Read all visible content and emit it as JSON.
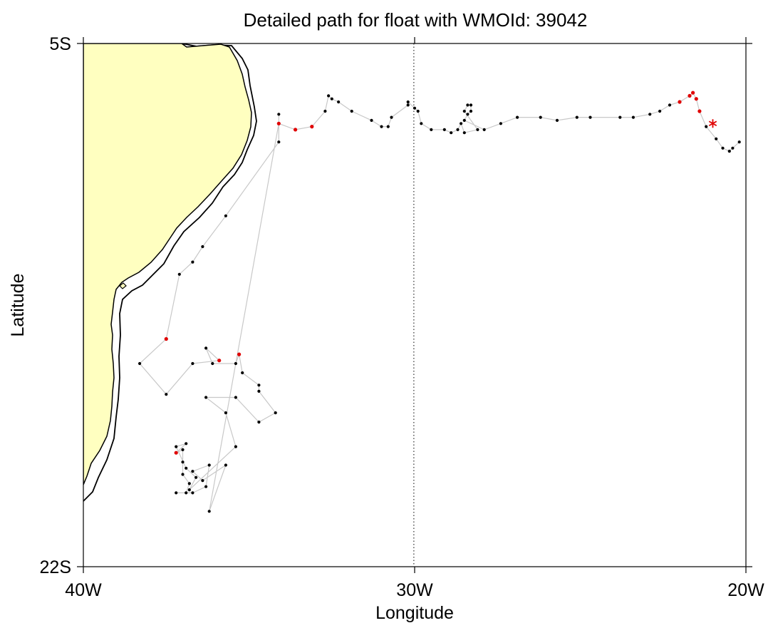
{
  "chart_data": {
    "type": "scatter",
    "title": "Detailed path for float with WMOId: 39042",
    "xlabel": "Longitude",
    "ylabel": "Latitude",
    "xlim": [
      -40,
      -20
    ],
    "ylim": [
      -22,
      -5
    ],
    "x_ticks": [
      {
        "value": -40,
        "label": "40W"
      },
      {
        "value": -30,
        "label": "30W"
      },
      {
        "value": -20,
        "label": "20W"
      }
    ],
    "y_ticks": [
      {
        "value": -5,
        "label": "5S"
      },
      {
        "value": -22,
        "label": "22S"
      }
    ],
    "reference_line": {
      "x": -30,
      "style": "dotted"
    },
    "grid": false,
    "colors": {
      "land": "#ffffc0",
      "coast": "#000000",
      "track": "#c8c8c8",
      "point": "#000000",
      "highlight": "#e00000",
      "last_position": "#e00000"
    },
    "track": [
      {
        "lon": -34.1,
        "lat": -7.3
      },
      {
        "lon": -34.1,
        "lat": -8.2
      },
      {
        "lon": -35.7,
        "lat": -10.6
      },
      {
        "lon": -36.4,
        "lat": -11.6
      },
      {
        "lon": -36.7,
        "lat": -12.1
      },
      {
        "lon": -37.1,
        "lat": -12.5
      },
      {
        "lon": -37.5,
        "lat": -14.6,
        "flag": true
      },
      {
        "lon": -38.3,
        "lat": -15.4
      },
      {
        "lon": -37.5,
        "lat": -16.4
      },
      {
        "lon": -36.7,
        "lat": -15.4
      },
      {
        "lon": -35.9,
        "lat": -15.3,
        "flag": true
      },
      {
        "lon": -36.3,
        "lat": -14.9
      },
      {
        "lon": -36.1,
        "lat": -15.4
      },
      {
        "lon": -35.4,
        "lat": -15.4
      },
      {
        "lon": -35.3,
        "lat": -15.1,
        "flag": true
      },
      {
        "lon": -35.2,
        "lat": -15.7
      },
      {
        "lon": -34.7,
        "lat": -16.1
      },
      {
        "lon": -34.7,
        "lat": -16.3
      },
      {
        "lon": -34.2,
        "lat": -17.0
      },
      {
        "lon": -34.7,
        "lat": -17.3
      },
      {
        "lon": -35.4,
        "lat": -16.5
      },
      {
        "lon": -36.3,
        "lat": -16.5
      },
      {
        "lon": -35.7,
        "lat": -17.0
      },
      {
        "lon": -35.4,
        "lat": -18.1
      },
      {
        "lon": -36.8,
        "lat": -19.5
      },
      {
        "lon": -36.6,
        "lat": -19.1
      },
      {
        "lon": -36.9,
        "lat": -18.8
      },
      {
        "lon": -37.2,
        "lat": -18.1
      },
      {
        "lon": -36.9,
        "lat": -18.0
      },
      {
        "lon": -37.2,
        "lat": -18.3,
        "flag": true
      },
      {
        "lon": -37.0,
        "lat": -18.2
      },
      {
        "lon": -37.0,
        "lat": -18.6
      },
      {
        "lon": -37.0,
        "lat": -19.0
      },
      {
        "lon": -36.8,
        "lat": -19.3
      },
      {
        "lon": -36.9,
        "lat": -19.6
      },
      {
        "lon": -37.2,
        "lat": -19.6
      },
      {
        "lon": -36.7,
        "lat": -19.6
      },
      {
        "lon": -36.3,
        "lat": -19.4
      },
      {
        "lon": -36.2,
        "lat": -18.7
      },
      {
        "lon": -36.7,
        "lat": -18.9
      },
      {
        "lon": -36.4,
        "lat": -19.2
      },
      {
        "lon": -35.7,
        "lat": -18.7
      },
      {
        "lon": -36.2,
        "lat": -20.2
      },
      {
        "lon": -34.1,
        "lat": -7.6,
        "flag": true
      },
      {
        "lon": -33.6,
        "lat": -7.8,
        "flag": true
      },
      {
        "lon": -33.1,
        "lat": -7.7,
        "flag": true
      },
      {
        "lon": -32.7,
        "lat": -7.2
      },
      {
        "lon": -32.6,
        "lat": -6.7
      },
      {
        "lon": -32.5,
        "lat": -6.8
      },
      {
        "lon": -32.3,
        "lat": -6.9
      },
      {
        "lon": -31.9,
        "lat": -7.2
      },
      {
        "lon": -31.3,
        "lat": -7.5
      },
      {
        "lon": -31.0,
        "lat": -7.7
      },
      {
        "lon": -30.8,
        "lat": -7.7
      },
      {
        "lon": -30.7,
        "lat": -7.4
      },
      {
        "lon": -30.2,
        "lat": -7.0
      },
      {
        "lon": -30.2,
        "lat": -6.9
      },
      {
        "lon": -30.0,
        "lat": -7.1
      },
      {
        "lon": -29.9,
        "lat": -7.2
      },
      {
        "lon": -29.8,
        "lat": -7.6
      },
      {
        "lon": -29.5,
        "lat": -7.8
      },
      {
        "lon": -29.1,
        "lat": -7.8
      },
      {
        "lon": -28.9,
        "lat": -7.9
      },
      {
        "lon": -28.7,
        "lat": -7.8
      },
      {
        "lon": -28.6,
        "lat": -7.6
      },
      {
        "lon": -28.5,
        "lat": -7.9
      },
      {
        "lon": -28.1,
        "lat": -7.8
      },
      {
        "lon": -28.5,
        "lat": -7.2
      },
      {
        "lon": -28.4,
        "lat": -7.0
      },
      {
        "lon": -28.3,
        "lat": -7.0
      },
      {
        "lon": -28.3,
        "lat": -7.2
      },
      {
        "lon": -28.4,
        "lat": -7.3
      },
      {
        "lon": -28.5,
        "lat": -7.5
      },
      {
        "lon": -27.9,
        "lat": -7.8
      },
      {
        "lon": -27.4,
        "lat": -7.6
      },
      {
        "lon": -26.9,
        "lat": -7.4
      },
      {
        "lon": -26.2,
        "lat": -7.4
      },
      {
        "lon": -25.7,
        "lat": -7.5
      },
      {
        "lon": -25.1,
        "lat": -7.4
      },
      {
        "lon": -24.7,
        "lat": -7.4
      },
      {
        "lon": -23.8,
        "lat": -7.4
      },
      {
        "lon": -23.4,
        "lat": -7.4
      },
      {
        "lon": -22.9,
        "lat": -7.3
      },
      {
        "lon": -22.6,
        "lat": -7.2
      },
      {
        "lon": -22.3,
        "lat": -7.0
      },
      {
        "lon": -22.0,
        "lat": -6.9,
        "flag": true
      },
      {
        "lon": -21.7,
        "lat": -6.7,
        "flag": true
      },
      {
        "lon": -21.6,
        "lat": -6.6,
        "flag": true
      },
      {
        "lon": -21.5,
        "lat": -6.8,
        "flag": true
      },
      {
        "lon": -21.4,
        "lat": -7.2,
        "flag": true
      },
      {
        "lon": -21.2,
        "lat": -7.7
      },
      {
        "lon": -20.9,
        "lat": -8.1
      },
      {
        "lon": -20.7,
        "lat": -8.4
      },
      {
        "lon": -20.5,
        "lat": -8.5
      },
      {
        "lon": -20.4,
        "lat": -8.4
      },
      {
        "lon": -20.2,
        "lat": -8.2
      }
    ],
    "last_position": {
      "lon": -21.0,
      "lat": -7.6
    }
  }
}
